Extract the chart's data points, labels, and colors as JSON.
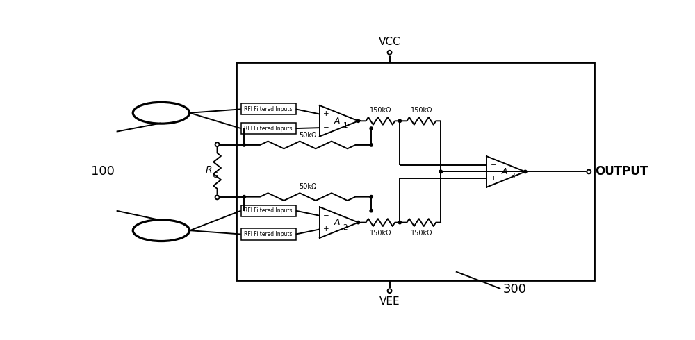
{
  "bg_color": "#ffffff",
  "line_color": "#000000",
  "lw": 1.4,
  "blw": 2.0,
  "fig_width": 10.0,
  "fig_height": 4.9,
  "vcc_label": "VCC",
  "vee_label": "VEE",
  "output_label": "OUTPUT",
  "label_100": "100",
  "label_300": "300",
  "label_rfi": "RFI Filtered Inputs",
  "label_50k": "50kΩ",
  "label_150k": "150kΩ"
}
